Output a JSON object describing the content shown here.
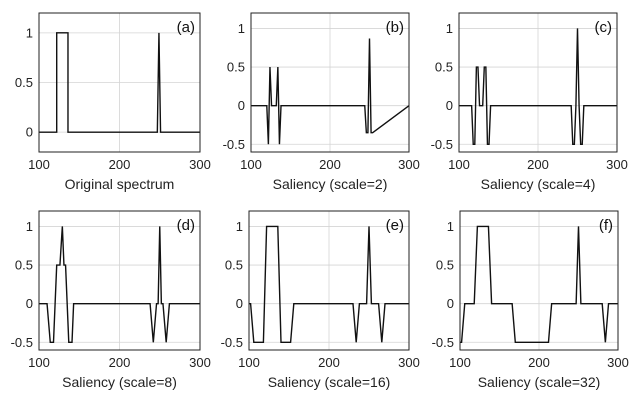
{
  "chart_data": [
    {
      "type": "line",
      "panel_label": "(a)",
      "xlabel": "Original spectrum",
      "xlim": [
        100,
        300
      ],
      "ylim": [
        -0.2,
        1.2
      ],
      "xticks": [
        100,
        200,
        300
      ],
      "yticks": [
        0,
        0.5,
        1
      ],
      "grid": true,
      "series": [
        {
          "x": [
            100,
            122,
            122,
            136,
            136,
            247,
            249,
            251,
            300
          ],
          "y": [
            0,
            0,
            1,
            1,
            0,
            0,
            1,
            0,
            0
          ]
        }
      ]
    },
    {
      "type": "line",
      "panel_label": "(b)",
      "xlabel": "Saliency (scale=2)",
      "xlim": [
        100,
        300
      ],
      "ylim": [
        -0.6,
        1.2
      ],
      "xticks": [
        100,
        200,
        300
      ],
      "yticks": [
        -0.5,
        0,
        0.5,
        1
      ],
      "grid": true,
      "series": [
        {
          "x": [
            100,
            120,
            122,
            124,
            126,
            128,
            132,
            134,
            136,
            138,
            140,
            244,
            246,
            248,
            250,
            252,
            254,
            300
          ],
          "y": [
            0,
            0,
            -0.5,
            0.5,
            0,
            0,
            0,
            0.5,
            -0.5,
            0,
            0,
            0,
            -0.35,
            -0.35,
            0.87,
            -0.35,
            -0.35,
            0
          ]
        }
      ]
    },
    {
      "type": "line",
      "panel_label": "(c)",
      "xlabel": "Saliency (scale=4)",
      "xlim": [
        100,
        300
      ],
      "ylim": [
        -0.6,
        1.2
      ],
      "xticks": [
        100,
        200,
        300
      ],
      "yticks": [
        -0.5,
        0,
        0.5,
        1
      ],
      "grid": true,
      "series": [
        {
          "x": [
            100,
            116,
            118,
            120,
            122,
            124,
            126,
            128,
            130,
            132,
            134,
            136,
            138,
            140,
            142,
            240,
            242,
            244,
            246,
            248,
            250,
            252,
            254,
            256,
            258,
            260,
            300
          ],
          "y": [
            0,
            0,
            -0.5,
            -0.5,
            0.5,
            0.5,
            0,
            0,
            0,
            0.5,
            0.5,
            -0.5,
            -0.5,
            0,
            0,
            0,
            0,
            -0.5,
            -0.5,
            0,
            1,
            0,
            -0.5,
            -0.5,
            0,
            0,
            0
          ]
        }
      ]
    },
    {
      "type": "line",
      "panel_label": "(d)",
      "xlabel": "Saliency (scale=8)",
      "xlim": [
        100,
        300
      ],
      "ylim": [
        -0.6,
        1.2
      ],
      "xticks": [
        100,
        200,
        300
      ],
      "yticks": [
        -0.5,
        0,
        0.5,
        1
      ],
      "grid": true,
      "series": [
        {
          "x": [
            100,
            110,
            114,
            118,
            122,
            126,
            129,
            131,
            133,
            137,
            141,
            143,
            238,
            242,
            246,
            248,
            250,
            252,
            254,
            258,
            262,
            300
          ],
          "y": [
            0,
            0,
            -0.5,
            -0.5,
            0.5,
            0.5,
            1,
            0.5,
            0.5,
            -0.5,
            -0.5,
            0,
            0,
            -0.5,
            0,
            0,
            1,
            0,
            0,
            -0.5,
            0,
            0
          ]
        }
      ]
    },
    {
      "type": "line",
      "panel_label": "(e)",
      "xlabel": "Saliency (scale=16)",
      "xlim": [
        100,
        300
      ],
      "ylim": [
        -0.6,
        1.2
      ],
      "xticks": [
        100,
        200,
        300
      ],
      "yticks": [
        -0.5,
        0,
        0.5,
        1
      ],
      "grid": true,
      "series": [
        {
          "x": [
            100,
            102,
            106,
            118,
            122,
            136,
            140,
            152,
            156,
            230,
            234,
            238,
            247,
            250,
            253,
            262,
            266,
            270,
            300
          ],
          "y": [
            0,
            0,
            -0.5,
            -0.5,
            1,
            1,
            -0.5,
            -0.5,
            0,
            0,
            -0.5,
            0,
            0,
            1,
            0,
            0,
            -0.5,
            0,
            0
          ]
        }
      ]
    },
    {
      "type": "line",
      "panel_label": "(f)",
      "xlabel": "Saliency (scale=32)",
      "xlim": [
        100,
        300
      ],
      "ylim": [
        -0.6,
        1.2
      ],
      "xticks": [
        100,
        200,
        300
      ],
      "yticks": [
        -0.5,
        0,
        0.5,
        1
      ],
      "grid": true,
      "series": [
        {
          "x": [
            100,
            102,
            106,
            118,
            122,
            136,
            140,
            166,
            170,
            212,
            216,
            220,
            247,
            250,
            253,
            280,
            284,
            288,
            300
          ],
          "y": [
            -0.5,
            -0.5,
            0,
            0,
            1,
            1,
            0,
            0,
            -0.5,
            -0.5,
            0,
            0,
            0,
            1,
            0,
            0,
            -0.5,
            0,
            0
          ]
        }
      ]
    }
  ]
}
